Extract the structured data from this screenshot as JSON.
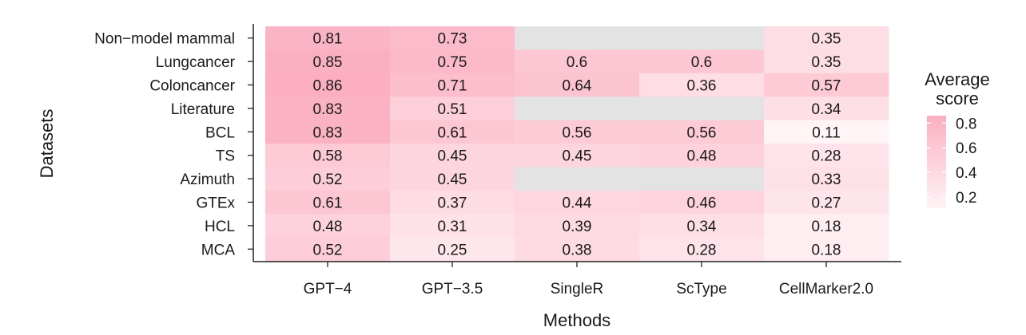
{
  "chart_data": {
    "type": "heatmap",
    "xlabel": "Methods",
    "ylabel": "Datasets",
    "x_categories": [
      "GPT−4",
      "GPT−3.5",
      "SingleR",
      "ScType",
      "CellMarker2.0"
    ],
    "y_categories": [
      "Non−model mammal",
      "Lungcancer",
      "Coloncancer",
      "Literature",
      "BCL",
      "TS",
      "Azimuth",
      "GTEx",
      "HCL",
      "MCA"
    ],
    "values": [
      [
        0.81,
        0.73,
        null,
        null,
        0.35
      ],
      [
        0.85,
        0.75,
        0.6,
        0.6,
        0.35
      ],
      [
        0.86,
        0.71,
        0.64,
        0.36,
        0.57
      ],
      [
        0.83,
        0.51,
        null,
        null,
        0.34
      ],
      [
        0.83,
        0.61,
        0.56,
        0.56,
        0.11
      ],
      [
        0.58,
        0.45,
        0.45,
        0.48,
        0.28
      ],
      [
        0.52,
        0.45,
        null,
        null,
        0.33
      ],
      [
        0.61,
        0.37,
        0.44,
        0.46,
        0.27
      ],
      [
        0.48,
        0.31,
        0.39,
        0.34,
        0.18
      ],
      [
        0.52,
        0.25,
        0.38,
        0.28,
        0.18
      ]
    ],
    "value_labels": [
      [
        "0.81",
        "0.73",
        "",
        "",
        "0.35"
      ],
      [
        "0.85",
        "0.75",
        "0.6",
        "0.6",
        "0.35"
      ],
      [
        "0.86",
        "0.71",
        "0.64",
        "0.36",
        "0.57"
      ],
      [
        "0.83",
        "0.51",
        "",
        "",
        "0.34"
      ],
      [
        "0.83",
        "0.61",
        "0.56",
        "0.56",
        "0.11"
      ],
      [
        "0.58",
        "0.45",
        "0.45",
        "0.48",
        "0.28"
      ],
      [
        "0.52",
        "0.45",
        "",
        "",
        "0.33"
      ],
      [
        "0.61",
        "0.37",
        "0.44",
        "0.46",
        "0.27"
      ],
      [
        "0.48",
        "0.31",
        "0.39",
        "0.34",
        "0.18"
      ],
      [
        "0.52",
        "0.25",
        "0.38",
        "0.28",
        "0.18"
      ]
    ],
    "missing_color": "#e3e3e3",
    "color_scale": {
      "low": "#fff5f7",
      "high": "#fbafc1",
      "range": [
        0.1,
        0.86
      ]
    },
    "legend": {
      "title_lines": [
        "Average",
        "score"
      ],
      "ticks": [
        0.8,
        0.6,
        0.4,
        0.2
      ],
      "tick_labels": [
        "0.8",
        "0.6",
        "0.4",
        "0.2"
      ],
      "range": [
        0.11,
        0.86
      ],
      "placement": "right"
    }
  }
}
